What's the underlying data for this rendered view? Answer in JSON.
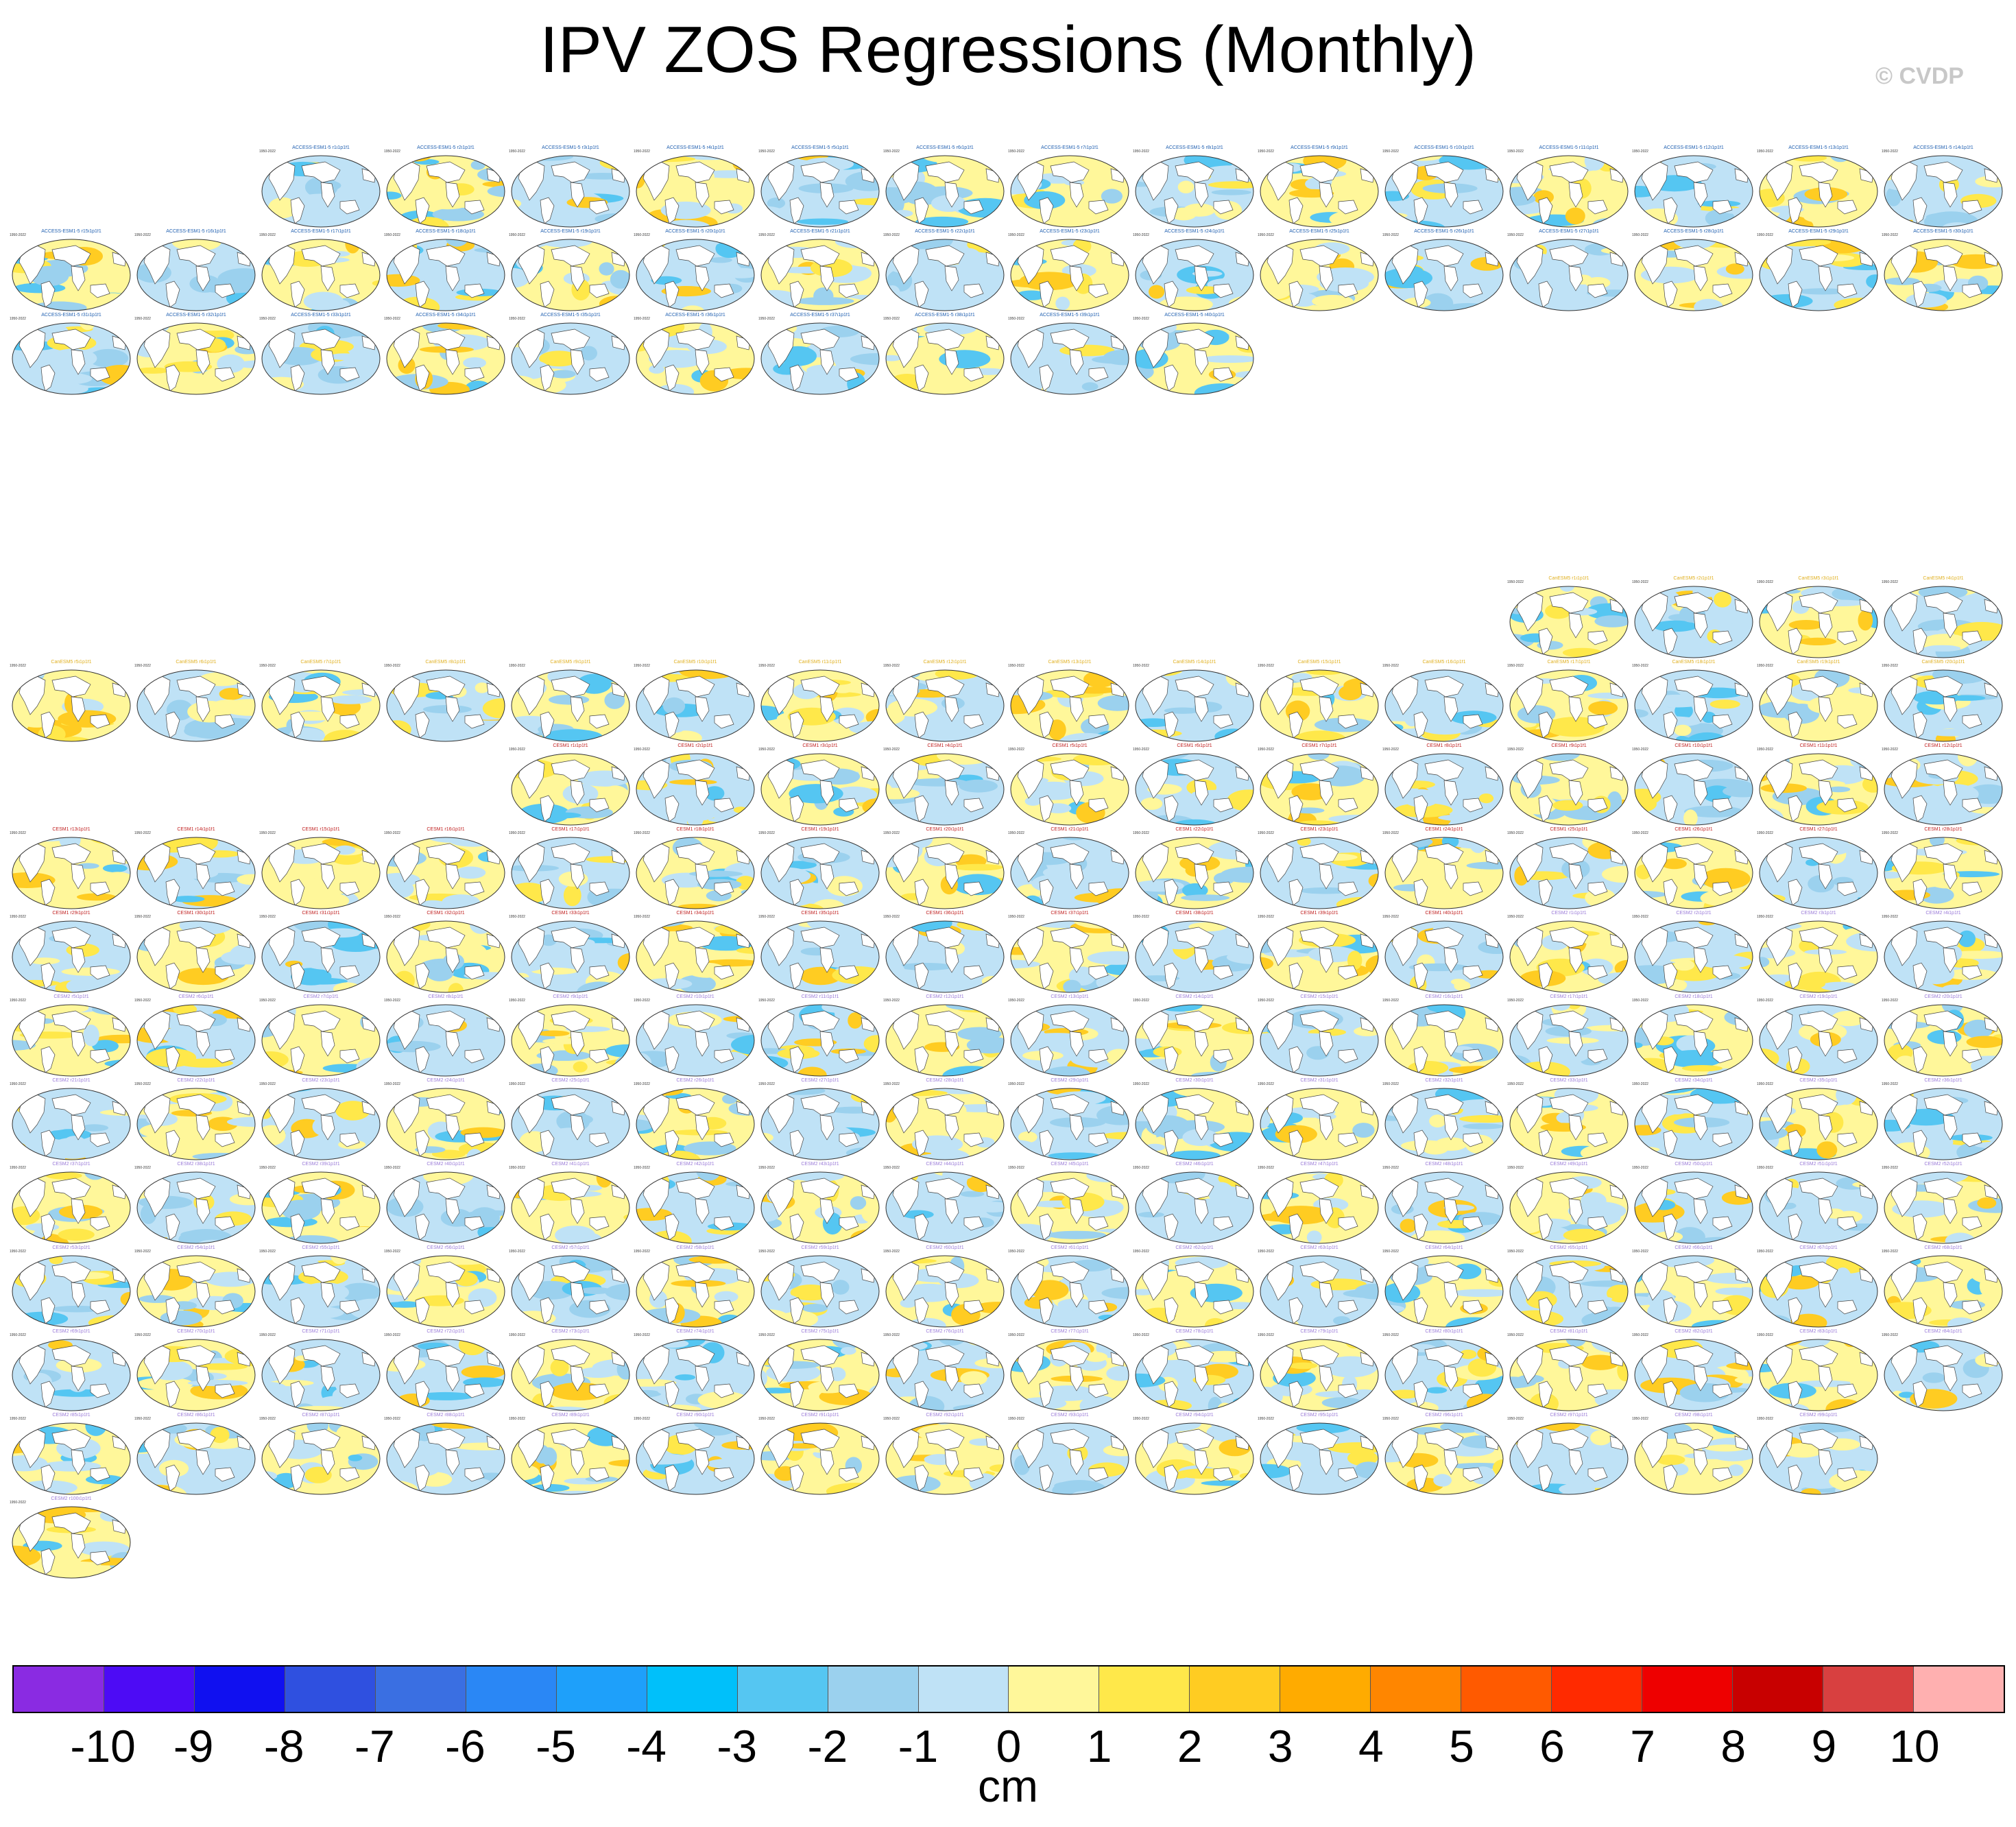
{
  "title": "IPV ZOS Regressions (Monthly)",
  "watermark": "© CVDP",
  "units": "cm",
  "panel_years": "1950-2022",
  "colorbar": {
    "labels": [
      "-10",
      "-9",
      "-8",
      "-7",
      "-6",
      "-5",
      "-4",
      "-3",
      "-2",
      "-1",
      "0",
      "1",
      "2",
      "3",
      "4",
      "5",
      "6",
      "7",
      "8",
      "9",
      "10"
    ],
    "colors": [
      "#8a2be2",
      "#4d0bf5",
      "#1010f0",
      "#2f50e0",
      "#3a6fe2",
      "#2a87f5",
      "#1ea0fa",
      "#00c0fa",
      "#55c6f2",
      "#9bd1ee",
      "#bfe2f6",
      "#fff79a",
      "#ffe84a",
      "#ffcc22",
      "#ffab00",
      "#ff8600",
      "#ff5a00",
      "#ff2a00",
      "#ee0000",
      "#c80000",
      "#d84040",
      "#ffb0b0"
    ]
  },
  "chart_data": {
    "type": "map-panel-grid",
    "title": "IPV ZOS Regressions (Monthly)",
    "variable": "ZOS",
    "units": "cm",
    "period": "1950-2022",
    "colorbar_levels": [
      -10,
      -9,
      -8,
      -7,
      -6,
      -5,
      -4,
      -3,
      -2,
      -1,
      0,
      1,
      2,
      3,
      4,
      5,
      6,
      7,
      8,
      9,
      10
    ],
    "groups": [
      {
        "model": "ACCESS-ESM1-5",
        "members": 40,
        "title_color": "#1f5fb0"
      },
      {
        "model": "CanESM5",
        "members": 20,
        "title_color": "#e0b020"
      },
      {
        "model": "CESM1",
        "members": 40,
        "title_color": "#c02020"
      },
      {
        "model": "CESM2",
        "members": 100,
        "title_color": "#9a7ad8"
      }
    ]
  }
}
